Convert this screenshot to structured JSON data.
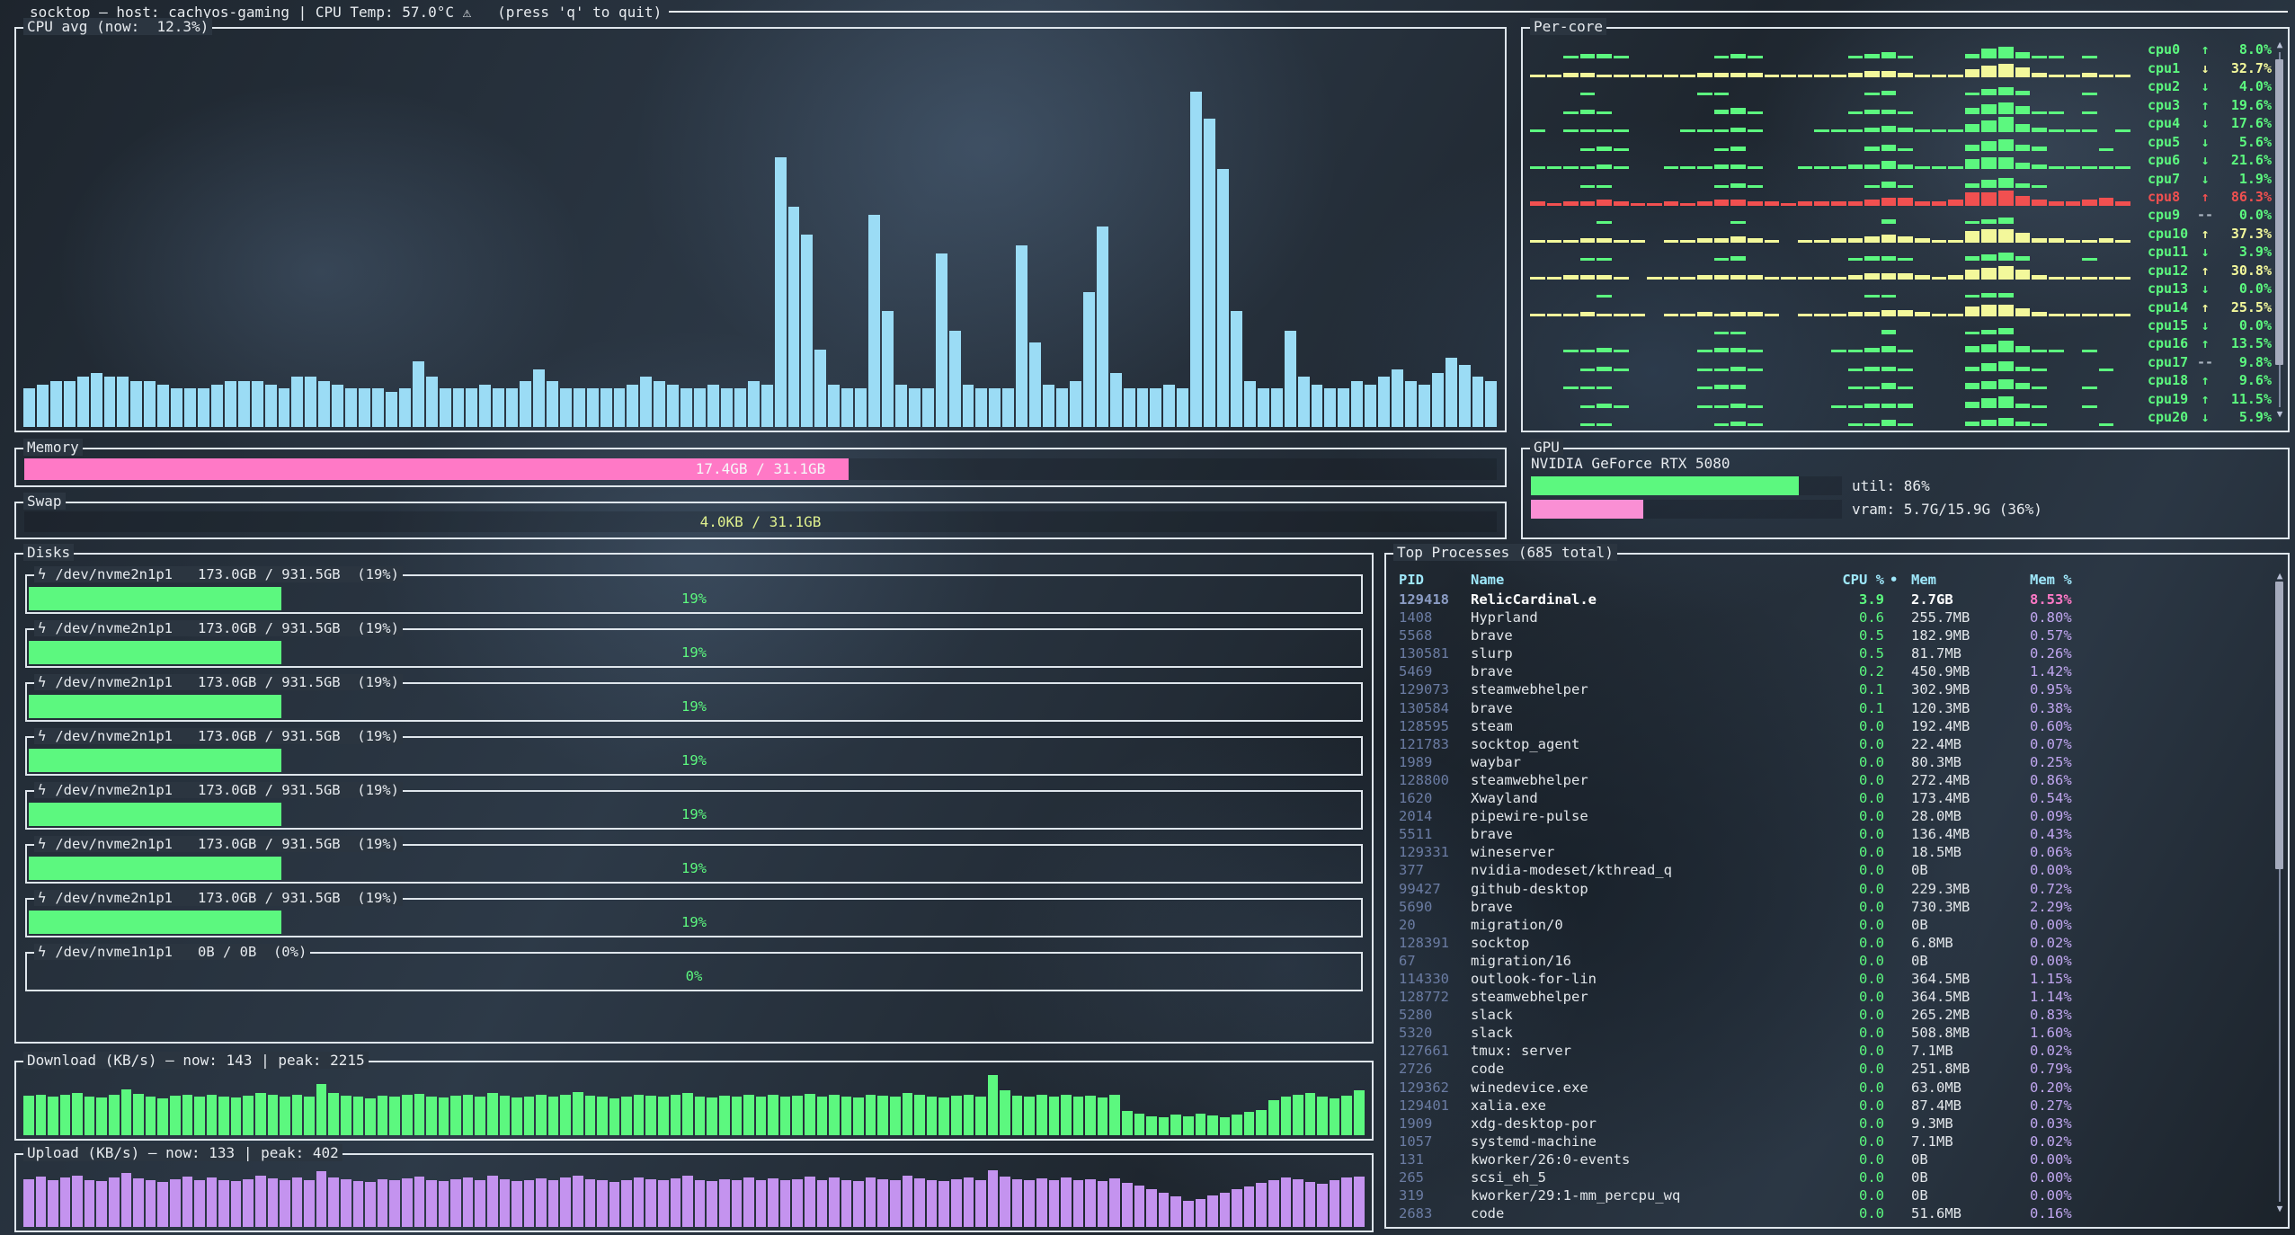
{
  "app": {
    "titlebar": "socktop — host: cachyos-gaming | CPU Temp: 57.0°C ⚠   (press 'q' to quit)"
  },
  "colors": {
    "green": "#5cf87f",
    "yellow": "#f3f89b",
    "red": "#f15050",
    "blue": "#9bdcf5",
    "purple": "#c493ef",
    "pink": "#ff79c6",
    "cyan": "#9fe8fb"
  },
  "cpu_avg": {
    "title": "CPU avg (now:  12.3%)",
    "now_pct": 12.3,
    "history": [
      10,
      11,
      12,
      12,
      13,
      14,
      13,
      13,
      12,
      12,
      11,
      10,
      10,
      10,
      11,
      12,
      12,
      12,
      11,
      10,
      13,
      13,
      12,
      11,
      10,
      10,
      10,
      9,
      10,
      17,
      13,
      10,
      10,
      10,
      11,
      10,
      10,
      12,
      15,
      12,
      10,
      10,
      10,
      10,
      10,
      11,
      13,
      12,
      11,
      10,
      10,
      11,
      10,
      10,
      12,
      11,
      70,
      57,
      50,
      20,
      11,
      10,
      10,
      55,
      30,
      11,
      10,
      10,
      45,
      25,
      11,
      10,
      10,
      10,
      47,
      22,
      11,
      10,
      12,
      35,
      52,
      14,
      10,
      10,
      10,
      11,
      10,
      87,
      80,
      67,
      30,
      12,
      10,
      10,
      25,
      13,
      11,
      10,
      10,
      12,
      11,
      13,
      15,
      12,
      11,
      14,
      18,
      16,
      13,
      12
    ]
  },
  "percore": {
    "title": "Per-core",
    "cores": [
      {
        "name": "cpu0",
        "arrow": "↑",
        "value": "8.0%",
        "level": "green",
        "spark": "001221000001210000012310002563110100"
      },
      {
        "name": "cpu1",
        "arrow": "↓",
        "value": "32.7%",
        "level": "yellow",
        "spark": "112211111122221111123321114675211211"
      },
      {
        "name": "cpu2",
        "arrow": "↓",
        "value": "4.0%",
        "level": "green",
        "spark": "000100000011000000001200001342000100"
      },
      {
        "name": "cpu3",
        "arrow": "↑",
        "value": "19.6%",
        "level": "green",
        "spark": "001210000002310000012210003564110100"
      },
      {
        "name": "cpu4",
        "arrow": "↓",
        "value": "17.6%",
        "level": "green",
        "spark": "101111000111210001112321114684211101"
      },
      {
        "name": "cpu5",
        "arrow": "↓",
        "value": "5.6%",
        "level": "green",
        "spark": "000121000001200000002310003563200010"
      },
      {
        "name": "cpu6",
        "arrow": "↓",
        "value": "21.6%",
        "level": "green",
        "spark": "111121001112210011122421115663211111"
      },
      {
        "name": "cpu7",
        "arrow": "↓",
        "value": "1.9%",
        "level": "green",
        "spark": "000110000001210000001310002452100000"
      },
      {
        "name": "cpu8",
        "arrow": "↑",
        "value": "86.3%",
        "level": "red",
        "spark": "212232112123322122223442237785322342"
      },
      {
        "name": "cpu9",
        "arrow": "--",
        "value": "0.0%",
        "level": "green",
        "spark": "000010000000100000000200001230000000"
      },
      {
        "name": "cpu10",
        "arrow": "↑",
        "value": "37.3%",
        "level": "yellow",
        "spark": "111221101122321011223432116775221121"
      },
      {
        "name": "cpu11",
        "arrow": "↓",
        "value": "3.9%",
        "level": "green",
        "spark": "000110000001200000012210002342000100"
      },
      {
        "name": "cpu12",
        "arrow": "↑",
        "value": "30.8%",
        "level": "yellow",
        "spark": "112221011122221111123332125675211111"
      },
      {
        "name": "cpu13",
        "arrow": "↓",
        "value": "0.0%",
        "level": "green",
        "spark": "000010000000000000001100001220000000"
      },
      {
        "name": "cpu14",
        "arrow": "↑",
        "value": "25.5%",
        "level": "yellow",
        "spark": "111211101121221011122332115664211111"
      },
      {
        "name": "cpu15",
        "arrow": "↓",
        "value": "0.0%",
        "level": "green",
        "spark": "000000000001100000000200001230000000"
      },
      {
        "name": "cpu16",
        "arrow": "↑",
        "value": "13.5%",
        "level": "green",
        "spark": "001121000012210000112310003463110100"
      },
      {
        "name": "cpu17",
        "arrow": "--",
        "value": "9.8%",
        "level": "green",
        "spark": "000121000011210000012210002452100010"
      },
      {
        "name": "cpu18",
        "arrow": "↑",
        "value": "9.6%",
        "level": "green",
        "spark": "001110000012200000011310003453100100"
      },
      {
        "name": "cpu19",
        "arrow": "↑",
        "value": "11.5%",
        "level": "green",
        "spark": "000121000011210000112220003562100100"
      },
      {
        "name": "cpu20",
        "arrow": "↓",
        "value": "5.9%",
        "level": "green",
        "spark": "000110000001210000011310002342100010"
      }
    ]
  },
  "memory": {
    "title": "Memory",
    "label": "17.4GB / 31.1GB",
    "fill_pct": 56
  },
  "swap": {
    "title": "Swap",
    "label": "4.0KB / 31.1GB",
    "fill_pct": 0
  },
  "gpu": {
    "title": "GPU",
    "device": "NVIDIA GeForce RTX 5080",
    "util_label": "util: 86%",
    "util_pct": 86,
    "vram_label": "vram: 5.7G/15.9G (36%)",
    "vram_pct": 36
  },
  "disks": {
    "title": "Disks",
    "items": [
      {
        "icon": "ϟ",
        "label": "/dev/nvme2n1p1   173.0GB / 931.5GB  (19%)",
        "pct": 19,
        "pct_label": "19%"
      },
      {
        "icon": "ϟ",
        "label": "/dev/nvme2n1p1   173.0GB / 931.5GB  (19%)",
        "pct": 19,
        "pct_label": "19%"
      },
      {
        "icon": "ϟ",
        "label": "/dev/nvme2n1p1   173.0GB / 931.5GB  (19%)",
        "pct": 19,
        "pct_label": "19%"
      },
      {
        "icon": "ϟ",
        "label": "/dev/nvme2n1p1   173.0GB / 931.5GB  (19%)",
        "pct": 19,
        "pct_label": "19%"
      },
      {
        "icon": "ϟ",
        "label": "/dev/nvme2n1p1   173.0GB / 931.5GB  (19%)",
        "pct": 19,
        "pct_label": "19%"
      },
      {
        "icon": "ϟ",
        "label": "/dev/nvme2n1p1   173.0GB / 931.5GB  (19%)",
        "pct": 19,
        "pct_label": "19%"
      },
      {
        "icon": "ϟ",
        "label": "/dev/nvme2n1p1   173.0GB / 931.5GB  (19%)",
        "pct": 19,
        "pct_label": "19%"
      },
      {
        "icon": "ϟ",
        "label": "/dev/nvme1n1p1   0B / 0B  (0%)",
        "pct": 0,
        "pct_label": "0%"
      }
    ]
  },
  "download": {
    "title": "Download (KB/s) — now: 143 | peak: 2215",
    "values": [
      62,
      64,
      60,
      63,
      66,
      61,
      59,
      64,
      72,
      65,
      60,
      58,
      62,
      64,
      60,
      63,
      61,
      59,
      62,
      66,
      63,
      60,
      64,
      61,
      80,
      66,
      62,
      60,
      58,
      62,
      60,
      63,
      65,
      61,
      59,
      62,
      64,
      60,
      66,
      62,
      59,
      61,
      63,
      60,
      64,
      67,
      62,
      60,
      58,
      61,
      64,
      62,
      60,
      63,
      66,
      61,
      59,
      62,
      60,
      64,
      61,
      63,
      60,
      62,
      65,
      60,
      63,
      61,
      59,
      64,
      62,
      60,
      66,
      63,
      61,
      59,
      62,
      64,
      61,
      95,
      70,
      62,
      60,
      63,
      61,
      64,
      60,
      62,
      59,
      63,
      38,
      34,
      30,
      28,
      32,
      30,
      34,
      31,
      28,
      33,
      36,
      40,
      55,
      60,
      63,
      66,
      61,
      58,
      62,
      70
    ]
  },
  "upload": {
    "title": "Upload (KB/s) — now: 133 | peak: 402",
    "values": [
      76,
      80,
      74,
      78,
      82,
      75,
      73,
      79,
      86,
      77,
      74,
      72,
      76,
      80,
      74,
      78,
      75,
      73,
      76,
      81,
      77,
      74,
      79,
      75,
      88,
      78,
      76,
      73,
      72,
      76,
      74,
      77,
      80,
      75,
      73,
      76,
      79,
      74,
      81,
      76,
      73,
      75,
      77,
      74,
      79,
      82,
      76,
      74,
      72,
      75,
      79,
      76,
      74,
      77,
      81,
      75,
      73,
      76,
      74,
      79,
      75,
      77,
      74,
      76,
      80,
      74,
      78,
      75,
      73,
      79,
      76,
      74,
      81,
      77,
      75,
      73,
      76,
      78,
      75,
      90,
      80,
      76,
      74,
      77,
      75,
      78,
      74,
      76,
      73,
      77,
      70,
      66,
      60,
      55,
      48,
      42,
      45,
      50,
      55,
      60,
      64,
      70,
      74,
      78,
      76,
      72,
      68,
      74,
      78,
      80
    ]
  },
  "processes": {
    "title": "Top Processes (685 total)",
    "header": {
      "pid": "PID",
      "name": "Name",
      "cpu": "CPU %",
      "sort_dot": "•",
      "mem": "Mem",
      "memp": "Mem %"
    },
    "rows": [
      [
        "129418",
        "RelicCardinal.e",
        "3.9",
        "2.7GB",
        "8.53%"
      ],
      [
        "1408",
        "Hyprland",
        "0.6",
        "255.7MB",
        "0.80%"
      ],
      [
        "5568",
        "brave",
        "0.5",
        "182.9MB",
        "0.57%"
      ],
      [
        "130581",
        "slurp",
        "0.5",
        "81.7MB",
        "0.26%"
      ],
      [
        "5469",
        "brave",
        "0.2",
        "450.9MB",
        "1.42%"
      ],
      [
        "129073",
        "steamwebhelper",
        "0.1",
        "302.9MB",
        "0.95%"
      ],
      [
        "130584",
        "brave",
        "0.1",
        "120.3MB",
        "0.38%"
      ],
      [
        "128595",
        "steam",
        "0.0",
        "192.4MB",
        "0.60%"
      ],
      [
        "121783",
        "socktop_agent",
        "0.0",
        "22.4MB",
        "0.07%"
      ],
      [
        "1989",
        "waybar",
        "0.0",
        "80.3MB",
        "0.25%"
      ],
      [
        "128800",
        "steamwebhelper",
        "0.0",
        "272.4MB",
        "0.86%"
      ],
      [
        "1620",
        "Xwayland",
        "0.0",
        "173.4MB",
        "0.54%"
      ],
      [
        "2014",
        "pipewire-pulse",
        "0.0",
        "28.0MB",
        "0.09%"
      ],
      [
        "5511",
        "brave",
        "0.0",
        "136.4MB",
        "0.43%"
      ],
      [
        "129331",
        "wineserver",
        "0.0",
        "18.5MB",
        "0.06%"
      ],
      [
        "377",
        "nvidia-modeset/kthread_q",
        "0.0",
        "0B",
        "0.00%"
      ],
      [
        "99427",
        "github-desktop",
        "0.0",
        "229.3MB",
        "0.72%"
      ],
      [
        "5690",
        "brave",
        "0.0",
        "730.3MB",
        "2.29%"
      ],
      [
        "20",
        "migration/0",
        "0.0",
        "0B",
        "0.00%"
      ],
      [
        "128391",
        "socktop",
        "0.0",
        "6.8MB",
        "0.02%"
      ],
      [
        "67",
        "migration/16",
        "0.0",
        "0B",
        "0.00%"
      ],
      [
        "114330",
        "outlook-for-lin",
        "0.0",
        "364.5MB",
        "1.15%"
      ],
      [
        "128772",
        "steamwebhelper",
        "0.0",
        "364.5MB",
        "1.14%"
      ],
      [
        "5280",
        "slack",
        "0.0",
        "265.2MB",
        "0.83%"
      ],
      [
        "5320",
        "slack",
        "0.0",
        "508.8MB",
        "1.60%"
      ],
      [
        "127661",
        "tmux: server",
        "0.0",
        "7.1MB",
        "0.02%"
      ],
      [
        "2726",
        "code",
        "0.0",
        "251.8MB",
        "0.79%"
      ],
      [
        "129362",
        "winedevice.exe",
        "0.0",
        "63.0MB",
        "0.20%"
      ],
      [
        "129401",
        "xalia.exe",
        "0.0",
        "87.4MB",
        "0.27%"
      ],
      [
        "1909",
        "xdg-desktop-por",
        "0.0",
        "9.3MB",
        "0.03%"
      ],
      [
        "1057",
        "systemd-machine",
        "0.0",
        "7.1MB",
        "0.02%"
      ],
      [
        "131",
        "kworker/26:0-events",
        "0.0",
        "0B",
        "0.00%"
      ],
      [
        "265",
        "scsi_eh_5",
        "0.0",
        "0B",
        "0.00%"
      ],
      [
        "319",
        "kworker/29:1-mm_percpu_wq",
        "0.0",
        "0B",
        "0.00%"
      ],
      [
        "2683",
        "code",
        "0.0",
        "51.6MB",
        "0.16%"
      ]
    ],
    "highlight_row": 0
  }
}
